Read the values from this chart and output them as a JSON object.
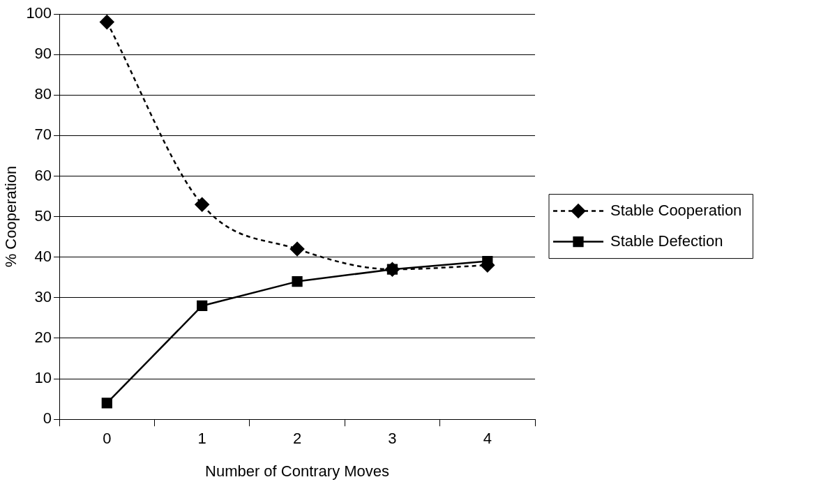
{
  "chart_data": {
    "type": "line",
    "xlabel": "Number of Contrary Moves",
    "ylabel": "% Cooperation",
    "categories": [
      "0",
      "1",
      "2",
      "3",
      "4"
    ],
    "series": [
      {
        "name": "Stable Cooperation",
        "color": "#000000",
        "values": [
          98,
          53,
          42,
          37,
          38
        ],
        "marker": "diamond",
        "line_style": "dashed"
      },
      {
        "name": "Stable Defection",
        "color": "#000000",
        "values": [
          4,
          28,
          34,
          37,
          39
        ],
        "marker": "square",
        "line_style": "solid"
      }
    ],
    "ylim": [
      0,
      100
    ],
    "yticks": [
      0,
      10,
      20,
      30,
      40,
      50,
      60,
      70,
      80,
      90,
      100
    ],
    "grid": "y",
    "legend": "right"
  }
}
